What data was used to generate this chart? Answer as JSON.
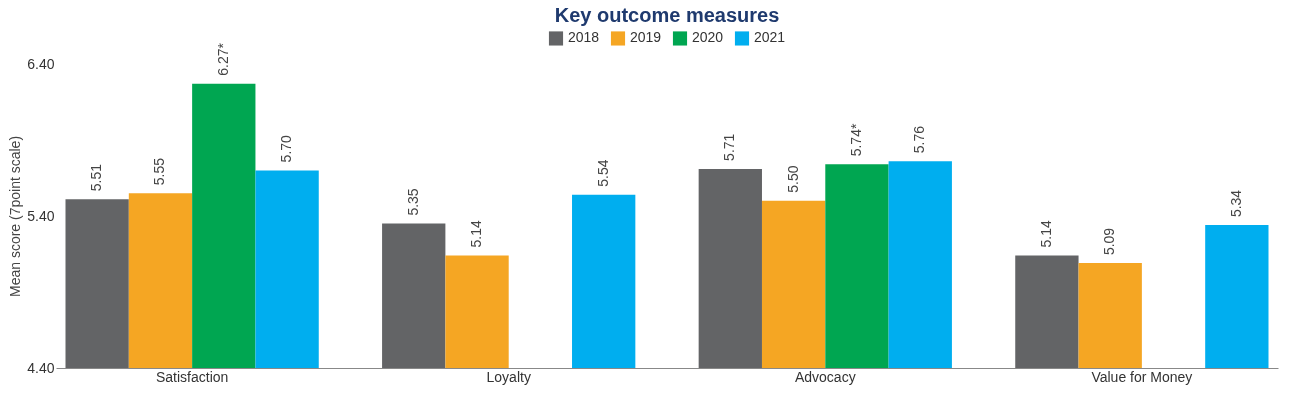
{
  "chart_data": {
    "type": "bar",
    "title": "Key outcome measures",
    "ylabel": "Mean score (7point scale)",
    "categories": [
      "Satisfaction",
      "Loyalty",
      "Advocacy",
      "Value for Money"
    ],
    "series": [
      {
        "name": "2018",
        "color": "#636466",
        "values": [
          5.51,
          5.35,
          5.71,
          5.14
        ],
        "value_labels": [
          "5.51",
          "5.35",
          "5.71",
          "5.14"
        ]
      },
      {
        "name": "2019",
        "color": "#f5a623",
        "values": [
          5.55,
          5.14,
          5.5,
          5.09
        ],
        "value_labels": [
          "5.55",
          "5.14",
          "5.50",
          "5.09"
        ]
      },
      {
        "name": "2020",
        "color": "#00a651",
        "values": [
          6.27,
          null,
          5.74,
          null
        ],
        "value_labels": [
          "6.27*",
          null,
          "5.74*",
          null
        ]
      },
      {
        "name": "2021",
        "color": "#00aeef",
        "values": [
          5.7,
          5.54,
          5.76,
          5.34
        ],
        "value_labels": [
          "5.70",
          "5.54",
          "5.76",
          "5.34"
        ]
      }
    ],
    "ylim": [
      4.4,
      6.4
    ],
    "yticks": [
      {
        "value": 4.4,
        "label": "4.40"
      },
      {
        "value": 5.4,
        "label": "5.40"
      },
      {
        "value": 6.4,
        "label": "6.40"
      }
    ],
    "legend": "top"
  }
}
